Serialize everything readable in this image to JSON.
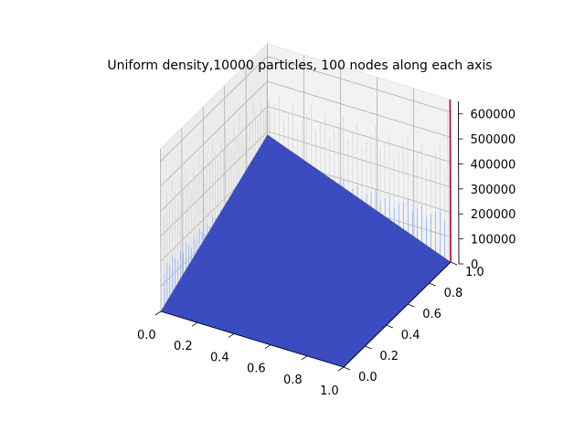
{
  "chart_data": {
    "type": "surface3d",
    "title": "Uniform density,10000 particles, 100 nodes along each axis",
    "xlabel": "",
    "ylabel": "",
    "zlabel": "",
    "xlim": [
      0,
      1
    ],
    "ylim": [
      0,
      1
    ],
    "zlim": [
      0,
      650000
    ],
    "x_ticks": [
      "0.0",
      "0.2",
      "0.4",
      "0.6",
      "0.8",
      "1.0"
    ],
    "y_ticks": [
      "0.0",
      "0.2",
      "0.4",
      "0.6",
      "0.8",
      "1.0"
    ],
    "z_ticks": [
      "0",
      "100000",
      "200000",
      "300000",
      "400000",
      "500000",
      "600000"
    ],
    "grid": true,
    "colormap": [
      "#3b4cc0",
      "#8db0fe",
      "#dddcdc",
      "#f49a7b",
      "#b40426"
    ],
    "surface_baseline": 0,
    "grid_nodes_per_axis": 100,
    "spike_peak_value": 650000,
    "spike_peak_location": [
      1.0,
      1.0
    ]
  }
}
